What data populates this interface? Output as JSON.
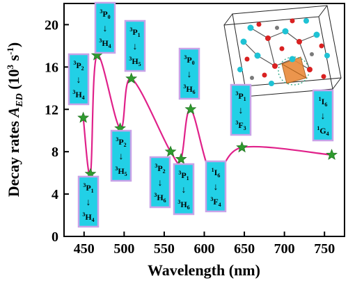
{
  "chart_data": {
    "type": "line",
    "xlabel": "Wavelength (nm)",
    "ylabel_main": "Decay rates ",
    "ylabel_sym": "A",
    "ylabel_sub": "ED",
    "ylabel_unit_open": " (10",
    "ylabel_unit_exp1": "3",
    "ylabel_unit_mid": " s",
    "ylabel_unit_exp2": "-1",
    "ylabel_unit_close": ")",
    "xlim": [
      425,
      775
    ],
    "ylim": [
      0,
      22
    ],
    "xticks": [
      450,
      500,
      550,
      600,
      650,
      700,
      750
    ],
    "yticks": [
      0,
      4,
      8,
      12,
      16,
      20
    ],
    "line_color": "#e0218a",
    "marker_color": "#2e9a2e",
    "points": [
      {
        "x": 449,
        "y": 11.2
      },
      {
        "x": 458,
        "y": 5.9
      },
      {
        "x": 466,
        "y": 17.1
      },
      {
        "x": 495,
        "y": 10.2
      },
      {
        "x": 509,
        "y": 14.9
      },
      {
        "x": 558,
        "y": 8.0
      },
      {
        "x": 571,
        "y": 7.3
      },
      {
        "x": 583,
        "y": 12.0
      },
      {
        "x": 611,
        "y": 5.6
      },
      {
        "x": 647,
        "y": 8.4
      },
      {
        "x": 759,
        "y": 7.7
      }
    ],
    "transition_labels": [
      {
        "from_sup": "3",
        "from": "P",
        "from_sub": "2",
        "to_sup": "3",
        "to": "H",
        "to_sub": "4"
      },
      {
        "from_sup": "3",
        "from": "P",
        "from_sub": "1",
        "to_sup": "3",
        "to": "H",
        "to_sub": "4"
      },
      {
        "from_sup": "3",
        "from": "P",
        "from_sub": "0",
        "to_sup": "3",
        "to": "H",
        "to_sub": "4"
      },
      {
        "from_sup": "3",
        "from": "P",
        "from_sub": "2",
        "to_sup": "3",
        "to": "H",
        "to_sub": "5"
      },
      {
        "from_sup": "3",
        "from": "P",
        "from_sub": "1",
        "to_sup": "3",
        "to": "H",
        "to_sub": "5"
      },
      {
        "from_sup": "3",
        "from": "P",
        "from_sub": "2",
        "to_sup": "3",
        "to": "H",
        "to_sub": "6"
      },
      {
        "from_sup": "3",
        "from": "P",
        "from_sub": "1",
        "to_sup": "3",
        "to": "H",
        "to_sub": "6"
      },
      {
        "from_sup": "3",
        "from": "P",
        "from_sub": "0",
        "to_sup": "3",
        "to": "H",
        "to_sub": "6"
      },
      {
        "from_sup": "1",
        "from": "I",
        "from_sub": "6",
        "to_sup": "3",
        "to": "F",
        "to_sub": "4"
      },
      {
        "from_sup": "3",
        "from": "P",
        "from_sub": "1",
        "to_sup": "3",
        "to": "F",
        "to_sub": "3"
      },
      {
        "from_sup": "1",
        "from": "I",
        "from_sub": "6",
        "to_sup": "1",
        "to": "G",
        "to_sub": "4"
      }
    ],
    "arrow_glyph": "↓",
    "label_box_fill": "#22d0e6",
    "label_box_border": "#c8a2e8"
  }
}
